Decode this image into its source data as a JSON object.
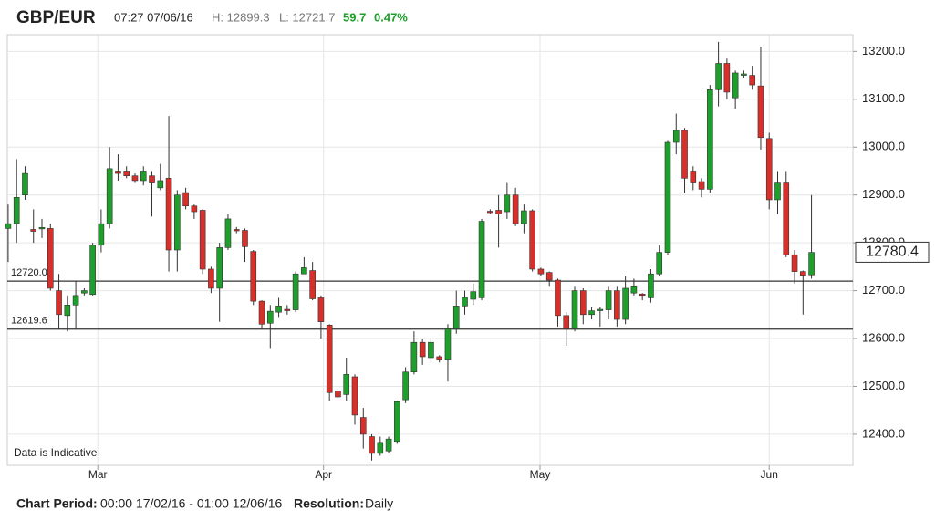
{
  "chart_data": {
    "type": "candlestick",
    "title": "GBP/EUR",
    "time": "07:27 07/06/16",
    "high_label": "H: 12899.3",
    "low_label": "L: 12721.7",
    "change": "59.7",
    "change_pct": "0.47%",
    "annotation": "Data is Indicative",
    "period_label": "Chart Period:",
    "period": "00:00 17/02/16 - 01:00 12/06/16",
    "resolution_label": "Resolution:",
    "resolution": "Daily",
    "up_color": "#1e9e2a",
    "down_color": "#d7302b",
    "grid": true,
    "ylim": [
      12335,
      13235
    ],
    "yticks": [
      {
        "value": 12400,
        "label": "12400.0"
      },
      {
        "value": 12500,
        "label": "12500.0"
      },
      {
        "value": 12600,
        "label": "12600.0"
      },
      {
        "value": 12700,
        "label": "12700.0"
      },
      {
        "value": 12800,
        "label": "12800.0"
      },
      {
        "value": 12900,
        "label": "12900.0"
      },
      {
        "value": 13000,
        "label": "13000.0"
      },
      {
        "value": 13100,
        "label": "13100.0"
      },
      {
        "value": 13200,
        "label": "13200.0"
      }
    ],
    "xlim": [
      -0.1,
      99.9
    ],
    "xticks": [
      {
        "value": 10.6,
        "label": "Mar"
      },
      {
        "value": 37.3,
        "label": "Apr"
      },
      {
        "value": 62.9,
        "label": "May"
      },
      {
        "value": 90,
        "label": "Jun"
      }
    ],
    "lines": [
      {
        "value": 12720,
        "label": "12720.0"
      },
      {
        "value": 12619.6,
        "label": "12619.6"
      }
    ],
    "last_price": {
      "value": 12780.4,
      "label": "12780.4"
    },
    "open": [
      12830,
      12840,
      12900,
      12828,
      12830,
      12830,
      12700,
      12648,
      12670,
      12695,
      12692,
      12795,
      12840,
      12950,
      12950,
      12940,
      12930,
      12940,
      12915,
      12935,
      12785,
      12905,
      12877,
      12868,
      12745,
      12705,
      12790,
      12828,
      12826,
      12782,
      12678,
      12632,
      12655,
      12661,
      12660,
      12735,
      12742,
      12685,
      12628,
      12490,
      12483,
      12520,
      12435,
      12395,
      12360,
      12365,
      12385,
      12472,
      12530,
      12592,
      12560,
      12562,
      12555,
      12620,
      12668,
      12682,
      12685,
      12866,
      12868,
      12865,
      12900,
      12840,
      12867,
      12745,
      12738,
      12722,
      12648,
      12620,
      12700,
      12650,
      12659,
      12660,
      12700,
      12640,
      12695,
      12693,
      12685,
      12735,
      12780,
      13010,
      13035,
      12950,
      12928,
      12912,
      13120,
      13175,
      13103,
      13150,
      13150,
      13128,
      13018,
      12890,
      12925,
      12775,
      12740,
      12733
    ],
    "high": [
      12880,
      12975,
      12960,
      12870,
      12850,
      12840,
      12735,
      12690,
      12720,
      12705,
      12800,
      12870,
      13000,
      12985,
      12960,
      12945,
      12960,
      12950,
      12965,
      13065,
      12910,
      12915,
      12880,
      12870,
      12750,
      12800,
      12860,
      12833,
      12830,
      12785,
      12680,
      12670,
      12685,
      12670,
      12740,
      12770,
      12760,
      12690,
      12630,
      12495,
      12560,
      12525,
      12455,
      12400,
      12395,
      12395,
      12470,
      12540,
      12615,
      12600,
      12600,
      12565,
      12630,
      12700,
      12700,
      12715,
      12850,
      12870,
      12900,
      12925,
      12915,
      12880,
      12870,
      12748,
      12740,
      12725,
      12655,
      12710,
      12705,
      12665,
      12665,
      12710,
      12710,
      12730,
      12725,
      12695,
      12745,
      12795,
      13015,
      13070,
      13040,
      12960,
      12935,
      13130,
      13220,
      13185,
      13160,
      13160,
      13170,
      13210,
      13030,
      12950,
      12950,
      12785,
      12742,
      12900
    ],
    "low": [
      12760,
      12800,
      12890,
      12800,
      12810,
      12700,
      12620,
      12615,
      12620,
      12690,
      12690,
      12780,
      12830,
      12930,
      12935,
      12925,
      12920,
      12855,
      12910,
      12740,
      12740,
      12870,
      12850,
      12735,
      12695,
      12635,
      12785,
      12820,
      12760,
      12670,
      12620,
      12580,
      12645,
      12650,
      12655,
      12735,
      12680,
      12600,
      12470,
      12475,
      12470,
      12420,
      12370,
      12345,
      12355,
      12360,
      12380,
      12465,
      12525,
      12545,
      12550,
      12550,
      12510,
      12610,
      12650,
      12670,
      12680,
      12860,
      12790,
      12850,
      12835,
      12820,
      12740,
      12730,
      12710,
      12625,
      12585,
      12615,
      12630,
      12640,
      12625,
      12640,
      12625,
      12630,
      12690,
      12680,
      12675,
      12730,
      12775,
      12985,
      12905,
      12910,
      12895,
      12905,
      13085,
      13100,
      13080,
      13145,
      13120,
      12995,
      12870,
      12860,
      12770,
      12715,
      12650,
      12725
    ],
    "close": [
      12840,
      12895,
      12945,
      12824,
      12832,
      12705,
      12650,
      12670,
      12690,
      12700,
      12795,
      12840,
      12955,
      12945,
      12940,
      12930,
      12950,
      12925,
      12930,
      12785,
      12900,
      12877,
      12865,
      12745,
      12705,
      12790,
      12850,
      12825,
      12792,
      12678,
      12630,
      12657,
      12668,
      12659,
      12735,
      12748,
      12683,
      12635,
      12487,
      12478,
      12525,
      12440,
      12400,
      12360,
      12383,
      12390,
      12468,
      12530,
      12592,
      12562,
      12592,
      12555,
      12620,
      12668,
      12686,
      12698,
      12845,
      12864,
      12860,
      12900,
      12840,
      12867,
      12745,
      12735,
      12722,
      12648,
      12620,
      12700,
      12650,
      12658,
      12661,
      12700,
      12640,
      12705,
      12710,
      12691,
      12735,
      12780,
      13010,
      13035,
      12935,
      12925,
      12912,
      13120,
      13175,
      13115,
      13155,
      13153,
      13130,
      13020,
      12890,
      12925,
      12775,
      12740,
      12732,
      12780
    ]
  }
}
